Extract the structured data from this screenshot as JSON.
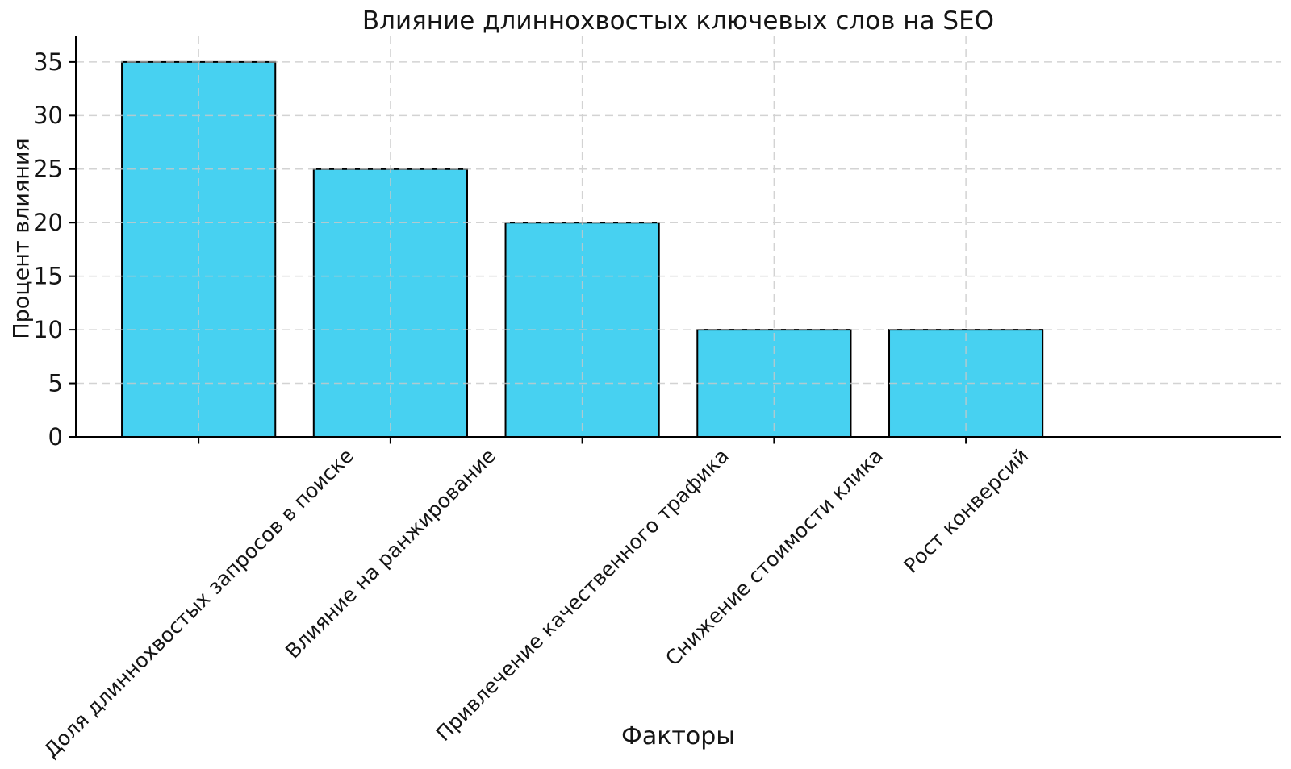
{
  "figure": {
    "background": "#ffffff"
  },
  "chart_data": {
    "type": "bar",
    "title": "Влияние длиннохвостых ключевых слов на SEO",
    "xlabel": "Факторы",
    "ylabel": "Процент влияния",
    "categories": [
      "Доля длиннохвостых запросов в поиске",
      "Влияние на ранжирование",
      "Привлечение качественного трафика",
      "Снижение стоимости клика",
      "Рост конверсий"
    ],
    "values": [
      35,
      25,
      20,
      10,
      10
    ],
    "yticks": [
      0,
      5,
      10,
      15,
      20,
      25,
      30,
      35
    ],
    "ylim": [
      0,
      37.4
    ],
    "bar_width_fraction": 0.8,
    "x_margin_units": 0.64,
    "tick_rotation_deg": 45,
    "legend_position": "none",
    "grid": true,
    "grid_style": "dashed",
    "grid_color": "#c9c9c9",
    "bar_color": "#47d1f1",
    "bar_edge_color": "#000000",
    "axis_color": "#000000",
    "text_color": "#151515"
  }
}
